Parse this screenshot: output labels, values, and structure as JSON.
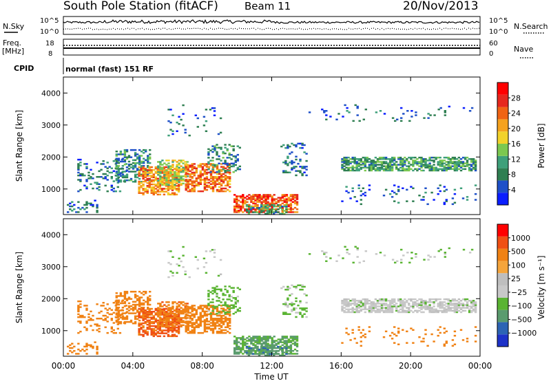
{
  "header": {
    "station": "South Pole Station (fitACF)",
    "beam": "Beam 11",
    "date": "20/Nov/2013"
  },
  "status_panels": {
    "nsky_label": "N.Sky",
    "nsky_ticks": [
      "10^5",
      "10^0"
    ],
    "nsearch_label": "N.Search",
    "nsearch_ticks": [
      "10^5",
      "10^0"
    ],
    "freq_label_line1": "Freq.",
    "freq_label_line2": "[MHz]",
    "freq_ticks": [
      "18",
      "8"
    ],
    "nave_label": "Nave",
    "nave_ticks": [
      "60",
      "0"
    ],
    "cpid_label": "CPID",
    "cpid_text": "normal (fast) 151 RF"
  },
  "colors": {
    "power_scale": [
      "#0a1eff",
      "#1e50c8",
      "#2f7f52",
      "#3ea07a",
      "#7cc850",
      "#f2d22a",
      "#f5a21e",
      "#f06414",
      "#e6281e",
      "#ff0000"
    ],
    "velocity_scale": [
      "#ff0000",
      "#f05014",
      "#f08214",
      "#f5a53c",
      "#bebebe",
      "#c8c8c8",
      "#5ab432",
      "#5a9b6e",
      "#2d64b4",
      "#1e32c8"
    ]
  },
  "chart_data": [
    {
      "type": "heatmap",
      "name": "power",
      "ylabel": "Slant Range [km]",
      "xlabel": "",
      "x_ticks": [
        "00:00",
        "04:00",
        "08:00",
        "12:00",
        "16:00",
        "20:00",
        "00:00"
      ],
      "y_ticks": [
        "1000",
        "2000",
        "3000",
        "4000"
      ],
      "ylim": [
        200,
        4500
      ],
      "xlim_hours": [
        0,
        24
      ],
      "colorbar_label": "Power [dB]",
      "colorbar_ticks": [
        "4",
        "8",
        "12",
        "16",
        "20",
        "24",
        "28"
      ],
      "colorbar_range": [
        0,
        30
      ]
    },
    {
      "type": "heatmap",
      "name": "velocity",
      "ylabel": "Slant Range [km]",
      "xlabel": "Time UT",
      "x_ticks": [
        "00:00",
        "04:00",
        "08:00",
        "12:00",
        "16:00",
        "20:00",
        "00:00"
      ],
      "y_ticks": [
        "1000",
        "2000",
        "3000",
        "4000"
      ],
      "ylim": [
        200,
        4500
      ],
      "xlim_hours": [
        0,
        24
      ],
      "colorbar_label": "Velocity [m s⁻¹]",
      "colorbar_ticks": [
        "1000",
        "500",
        "100",
        "25",
        "−25",
        "−100",
        "−500",
        "−1000"
      ]
    }
  ]
}
